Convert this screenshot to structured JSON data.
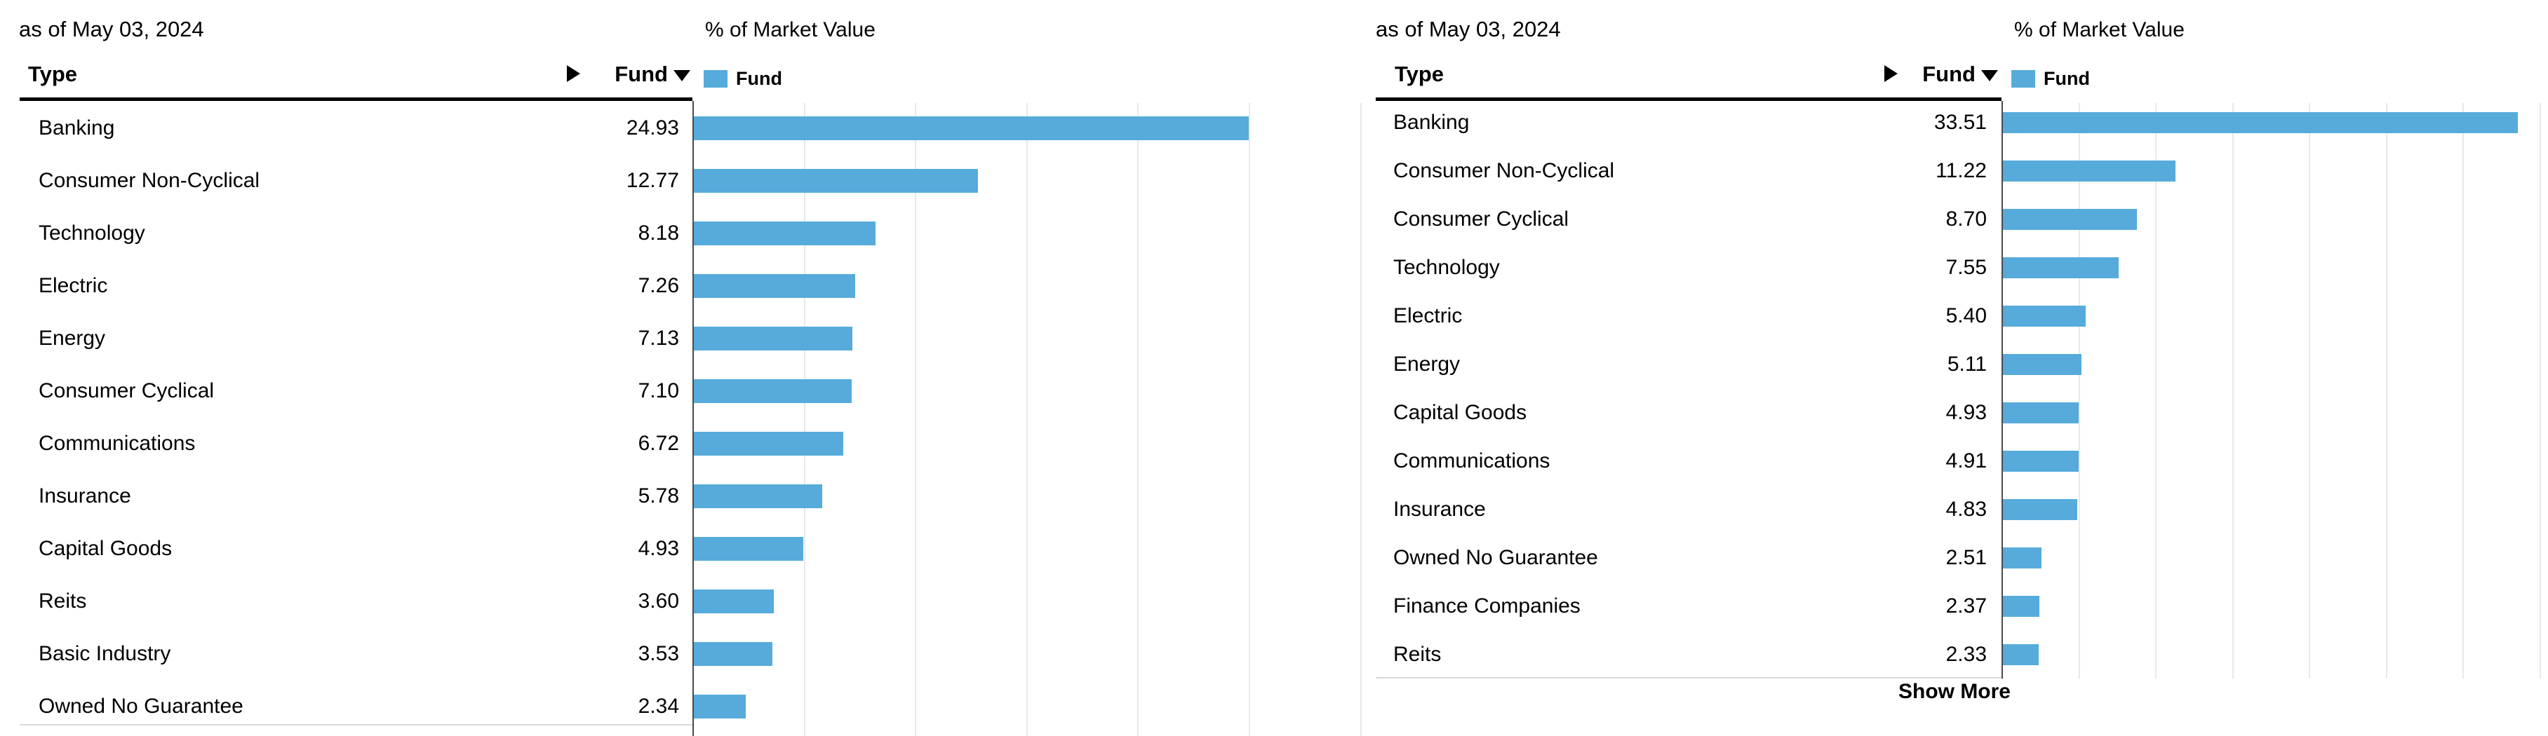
{
  "colors": {
    "bar_blue": "#56ABDB",
    "grid_line": "#E9E9E9",
    "axis_line": "#4A4A4A",
    "header_rule": "#000000",
    "bottom_rule": "#D9D9D9",
    "text": "#000000"
  },
  "panels": [
    {
      "as_of": "as of May 03, 2024",
      "chart_title": "% of Market Value",
      "type_header": "Type",
      "fund_header": "Fund",
      "legend_label": "Fund",
      "axis": {
        "min": 0,
        "max": 30,
        "grid_step": 5
      },
      "rows": [
        {
          "type": "Banking",
          "fund": "24.93"
        },
        {
          "type": "Consumer Non-Cyclical",
          "fund": "12.77"
        },
        {
          "type": "Technology",
          "fund": "8.18"
        },
        {
          "type": "Electric",
          "fund": "7.26"
        },
        {
          "type": "Energy",
          "fund": "7.13"
        },
        {
          "type": "Consumer Cyclical",
          "fund": "7.10"
        },
        {
          "type": "Communications",
          "fund": "6.72"
        },
        {
          "type": "Insurance",
          "fund": "5.78"
        },
        {
          "type": "Capital Goods",
          "fund": "4.93"
        },
        {
          "type": "Reits",
          "fund": "3.60"
        },
        {
          "type": "Basic Industry",
          "fund": "3.53"
        },
        {
          "type": "Owned No Guarantee",
          "fund": "2.34"
        }
      ]
    },
    {
      "as_of": "as of May 03, 2024",
      "chart_title": "% of Market Value",
      "type_header": "Type",
      "fund_header": "Fund",
      "legend_label": "Fund",
      "show_more": "Show More",
      "axis": {
        "min": 0,
        "max": 35,
        "grid_step": 5
      },
      "rows": [
        {
          "type": "Banking",
          "fund": "33.51"
        },
        {
          "type": "Consumer Non-Cyclical",
          "fund": "11.22"
        },
        {
          "type": "Consumer Cyclical",
          "fund": "8.70"
        },
        {
          "type": "Technology",
          "fund": "7.55"
        },
        {
          "type": "Electric",
          "fund": "5.40"
        },
        {
          "type": "Energy",
          "fund": "5.11"
        },
        {
          "type": "Capital Goods",
          "fund": "4.93"
        },
        {
          "type": "Communications",
          "fund": "4.91"
        },
        {
          "type": "Insurance",
          "fund": "4.83"
        },
        {
          "type": "Owned No Guarantee",
          "fund": "2.51"
        },
        {
          "type": "Finance Companies",
          "fund": "2.37"
        },
        {
          "type": "Reits",
          "fund": "2.33"
        }
      ]
    }
  ],
  "chart_data": [
    {
      "type": "bar",
      "orientation": "horizontal",
      "title": "% of Market Value",
      "subtitle": "as of May 03, 2024",
      "categories": [
        "Banking",
        "Consumer Non-Cyclical",
        "Technology",
        "Electric",
        "Energy",
        "Consumer Cyclical",
        "Communications",
        "Insurance",
        "Capital Goods",
        "Reits",
        "Basic Industry",
        "Owned No Guarantee"
      ],
      "series": [
        {
          "name": "Fund",
          "values": [
            24.93,
            12.77,
            8.18,
            7.26,
            7.13,
            7.1,
            6.72,
            5.78,
            4.93,
            3.6,
            3.53,
            2.34
          ]
        }
      ],
      "xlabel": "",
      "ylabel": "Type",
      "xlim": [
        0,
        30
      ],
      "grid_step": 5,
      "grid": true,
      "legend": [
        "Fund"
      ],
      "legend_position": "top"
    },
    {
      "type": "bar",
      "orientation": "horizontal",
      "title": "% of Market Value",
      "subtitle": "as of May 03, 2024",
      "categories": [
        "Banking",
        "Consumer Non-Cyclical",
        "Consumer Cyclical",
        "Technology",
        "Electric",
        "Energy",
        "Capital Goods",
        "Communications",
        "Insurance",
        "Owned No Guarantee",
        "Finance Companies",
        "Reits"
      ],
      "series": [
        {
          "name": "Fund",
          "values": [
            33.51,
            11.22,
            8.7,
            7.55,
            5.4,
            5.11,
            4.93,
            4.91,
            4.83,
            2.51,
            2.37,
            2.33
          ]
        }
      ],
      "xlabel": "",
      "ylabel": "Type",
      "xlim": [
        0,
        35
      ],
      "grid_step": 5,
      "grid": true,
      "legend": [
        "Fund"
      ],
      "legend_position": "top",
      "footer_action": "Show More"
    }
  ]
}
